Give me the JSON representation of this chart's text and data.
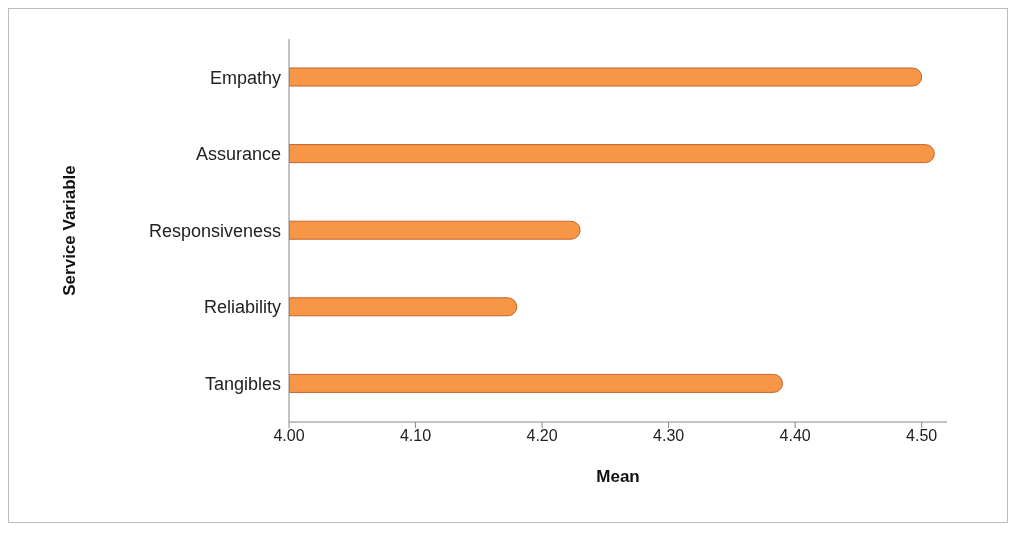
{
  "chart_data": {
    "type": "bar",
    "orientation": "horizontal",
    "xlabel": "Mean",
    "ylabel": "Service Variable",
    "categories": [
      "Empathy",
      "Assurance",
      "Responsiveness",
      "Reliability",
      "Tangibles"
    ],
    "values": [
      4.5,
      4.51,
      4.23,
      4.18,
      4.39
    ],
    "color": "#f79646",
    "xlim": [
      4.0,
      4.52
    ],
    "xticks": [
      {
        "value": 4.0,
        "label": "4.00"
      },
      {
        "value": 4.1,
        "label": "4.10"
      },
      {
        "value": 4.2,
        "label": "4.20"
      },
      {
        "value": 4.3,
        "label": "4.30"
      },
      {
        "value": 4.4,
        "label": "4.40"
      },
      {
        "value": 4.5,
        "label": "4.50"
      }
    ],
    "grid": false,
    "legend": false
  }
}
